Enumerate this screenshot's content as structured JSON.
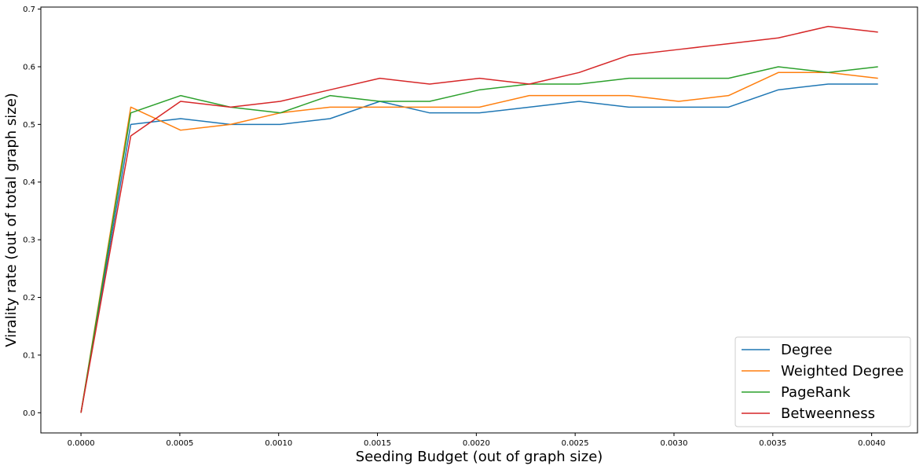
{
  "chart_data": {
    "type": "line",
    "title": "",
    "xlabel": "Seeding Budget (out of graph size)",
    "ylabel": "Virality rate (out of total graph size)",
    "xlim": [
      -0.000203,
      0.004232
    ],
    "ylim": [
      -0.035,
      0.7035
    ],
    "xticks": [
      0.0,
      0.0005,
      0.001,
      0.0015,
      0.002,
      0.0025,
      0.003,
      0.0035,
      0.004
    ],
    "xtick_labels": [
      "0.0000",
      "0.0005",
      "0.0010",
      "0.0015",
      "0.0020",
      "0.0025",
      "0.0030",
      "0.0035",
      "0.0040"
    ],
    "yticks": [
      0.0,
      0.1,
      0.2,
      0.3,
      0.4,
      0.5,
      0.6,
      0.7
    ],
    "ytick_labels": [
      "0.0",
      "0.1",
      "0.2",
      "0.3",
      "0.4",
      "0.5",
      "0.6",
      "0.7"
    ],
    "grid": false,
    "legend_position": "bottom-right",
    "x": [
      0.0,
      0.000252,
      0.000504,
      0.000756,
      0.001008,
      0.00126,
      0.001512,
      0.001764,
      0.002016,
      0.002268,
      0.00252,
      0.002772,
      0.003024,
      0.003276,
      0.003528,
      0.00378,
      0.004032
    ],
    "series": [
      {
        "name": "Degree",
        "color": "#1f77b4",
        "values": [
          0.0,
          0.5,
          0.51,
          0.5,
          0.5,
          0.51,
          0.54,
          0.52,
          0.52,
          0.53,
          0.54,
          0.53,
          0.53,
          0.53,
          0.56,
          0.57,
          0.57
        ]
      },
      {
        "name": "Weighted Degree",
        "color": "#ff7f0e",
        "values": [
          0.0,
          0.53,
          0.49,
          0.5,
          0.52,
          0.53,
          0.53,
          0.53,
          0.53,
          0.55,
          0.55,
          0.55,
          0.54,
          0.55,
          0.59,
          0.59,
          0.58
        ]
      },
      {
        "name": "PageRank",
        "color": "#2ca02c",
        "values": [
          0.0,
          0.52,
          0.55,
          0.53,
          0.52,
          0.55,
          0.54,
          0.54,
          0.56,
          0.57,
          0.57,
          0.58,
          0.58,
          0.58,
          0.6,
          0.59,
          0.6
        ]
      },
      {
        "name": "Betweenness",
        "color": "#d62728",
        "values": [
          0.0,
          0.48,
          0.54,
          0.53,
          0.54,
          0.56,
          0.58,
          0.57,
          0.58,
          0.57,
          0.59,
          0.62,
          0.63,
          0.64,
          0.65,
          0.67,
          0.66
        ]
      }
    ]
  }
}
